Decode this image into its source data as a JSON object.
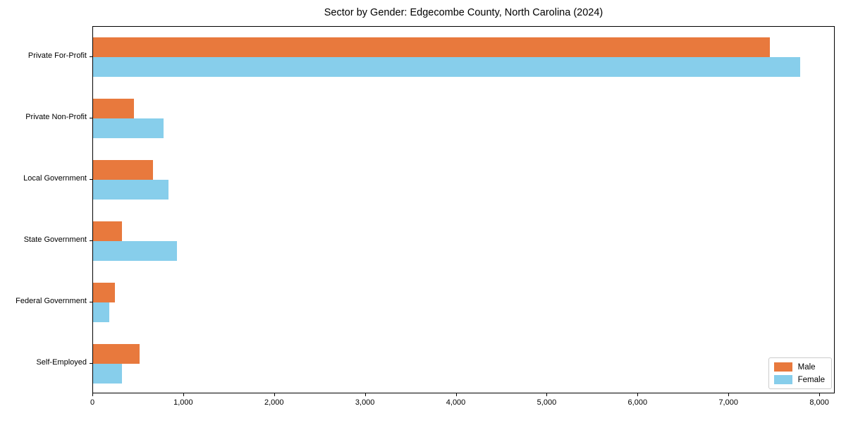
{
  "chart_data": {
    "type": "bar",
    "orientation": "horizontal",
    "title": "Sector by Gender: Edgecombe County, North Carolina (2024)",
    "categories": [
      "Private For-Profit",
      "Private Non-Profit",
      "Local Government",
      "State Government",
      "Federal Government",
      "Self-Employed"
    ],
    "series": [
      {
        "name": "Male",
        "color": "#e8793d",
        "values": [
          7450,
          450,
          660,
          320,
          240,
          510
        ]
      },
      {
        "name": "Female",
        "color": "#87ceeb",
        "values": [
          7780,
          775,
          830,
          920,
          175,
          315
        ]
      }
    ],
    "xlabel": "",
    "ylabel": "",
    "xlim": [
      0,
      8170
    ],
    "xticks": [
      0,
      1000,
      2000,
      3000,
      4000,
      5000,
      6000,
      7000,
      8000
    ],
    "xtick_labels": [
      "0",
      "1,000",
      "2,000",
      "3,000",
      "4,000",
      "5,000",
      "6,000",
      "7,000",
      "8,000"
    ],
    "grid": false,
    "legend": {
      "position": "lower right",
      "entries": [
        "Male",
        "Female"
      ]
    }
  }
}
